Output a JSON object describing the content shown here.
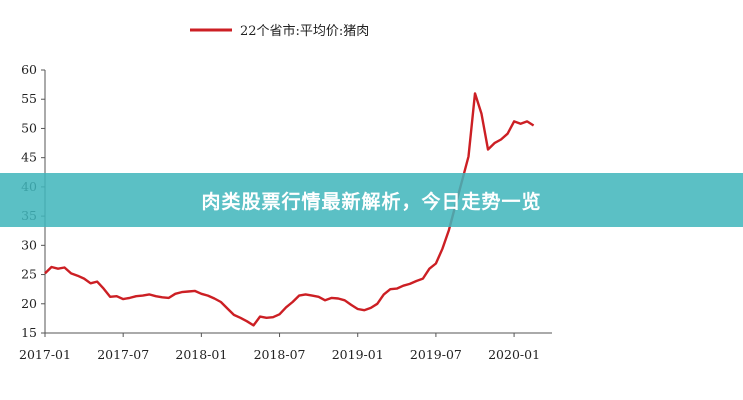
{
  "chart_data": {
    "type": "line",
    "title": "",
    "xlabel": "",
    "ylabel": "",
    "ylim": [
      15,
      60
    ],
    "yticks": [
      15,
      20,
      25,
      30,
      35,
      40,
      45,
      50,
      55,
      60
    ],
    "xticks": [
      "2017-01",
      "2017-07",
      "2018-01",
      "2018-07",
      "2019-01",
      "2019-07",
      "2020-01"
    ],
    "legend_position": "top-center",
    "grid": false,
    "series": [
      {
        "name": "22个省市:平均价:猪肉",
        "color": "#cc1f24",
        "x": [
          "2017-01",
          "2017-01",
          "2017-02",
          "2017-02",
          "2017-03",
          "2017-03",
          "2017-04",
          "2017-04",
          "2017-05",
          "2017-05",
          "2017-06",
          "2017-06",
          "2017-07",
          "2017-07",
          "2017-08",
          "2017-08",
          "2017-09",
          "2017-09",
          "2017-10",
          "2017-10",
          "2017-11",
          "2017-11",
          "2017-12",
          "2017-12",
          "2018-01",
          "2018-01",
          "2018-02",
          "2018-02",
          "2018-03",
          "2018-03",
          "2018-04",
          "2018-04",
          "2018-05",
          "2018-05",
          "2018-06",
          "2018-06",
          "2018-07",
          "2018-07",
          "2018-08",
          "2018-08",
          "2018-09",
          "2018-09",
          "2018-10",
          "2018-10",
          "2018-11",
          "2018-11",
          "2018-12",
          "2018-12",
          "2019-01",
          "2019-01",
          "2019-02",
          "2019-02",
          "2019-03",
          "2019-03",
          "2019-04",
          "2019-04",
          "2019-05",
          "2019-05",
          "2019-06",
          "2019-06",
          "2019-07",
          "2019-07",
          "2019-08",
          "2019-08",
          "2019-09",
          "2019-09",
          "2019-10",
          "2019-10",
          "2019-11",
          "2019-11",
          "2019-12",
          "2019-12",
          "2020-01",
          "2020-01",
          "2020-02",
          "2020-02"
        ],
        "values": [
          25.2,
          26.3,
          26.0,
          26.2,
          25.2,
          24.8,
          24.3,
          23.5,
          23.8,
          22.6,
          21.2,
          21.3,
          20.8,
          21.0,
          21.3,
          21.4,
          21.6,
          21.3,
          21.1,
          21.0,
          21.7,
          22.0,
          22.1,
          22.2,
          21.7,
          21.4,
          20.9,
          20.3,
          19.2,
          18.1,
          17.6,
          17.0,
          16.3,
          17.8,
          17.6,
          17.7,
          18.2,
          19.4,
          20.3,
          21.4,
          21.6,
          21.4,
          21.2,
          20.6,
          21.0,
          20.9,
          20.6,
          19.8,
          19.1,
          18.9,
          19.3,
          20.0,
          21.6,
          22.5,
          22.6,
          23.1,
          23.4,
          23.9,
          24.3,
          26.0,
          26.9,
          29.4,
          32.6,
          36.8,
          41.0,
          45.2,
          56.0,
          52.5,
          46.4,
          47.5,
          48.1,
          49.1,
          51.2,
          50.8,
          51.2,
          50.5
        ]
      }
    ]
  },
  "banner": {
    "text": "肉类股票行情最新解析，今日走势一览"
  }
}
